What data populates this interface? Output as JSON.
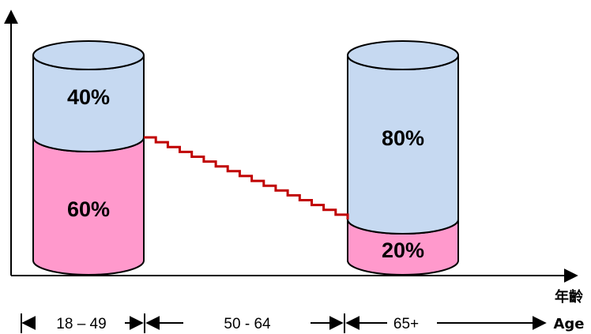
{
  "chart_data": {
    "type": "bar",
    "categories": [
      "18 – 49",
      "65+"
    ],
    "series": [
      {
        "values": [
          60,
          20
        ],
        "color": "#ff99cc"
      },
      {
        "values": [
          40,
          80
        ],
        "color": "#c6d9f1"
      }
    ],
    "labels": [
      [
        "60%",
        "40%"
      ],
      [
        "20%",
        "80%"
      ]
    ],
    "middle_range": "50 - 64",
    "xlabel_top": "年齡",
    "xlabel": "Age",
    "ylim": [
      0,
      100
    ],
    "connector_color": "#c00000",
    "grid": false,
    "legend": "none"
  }
}
